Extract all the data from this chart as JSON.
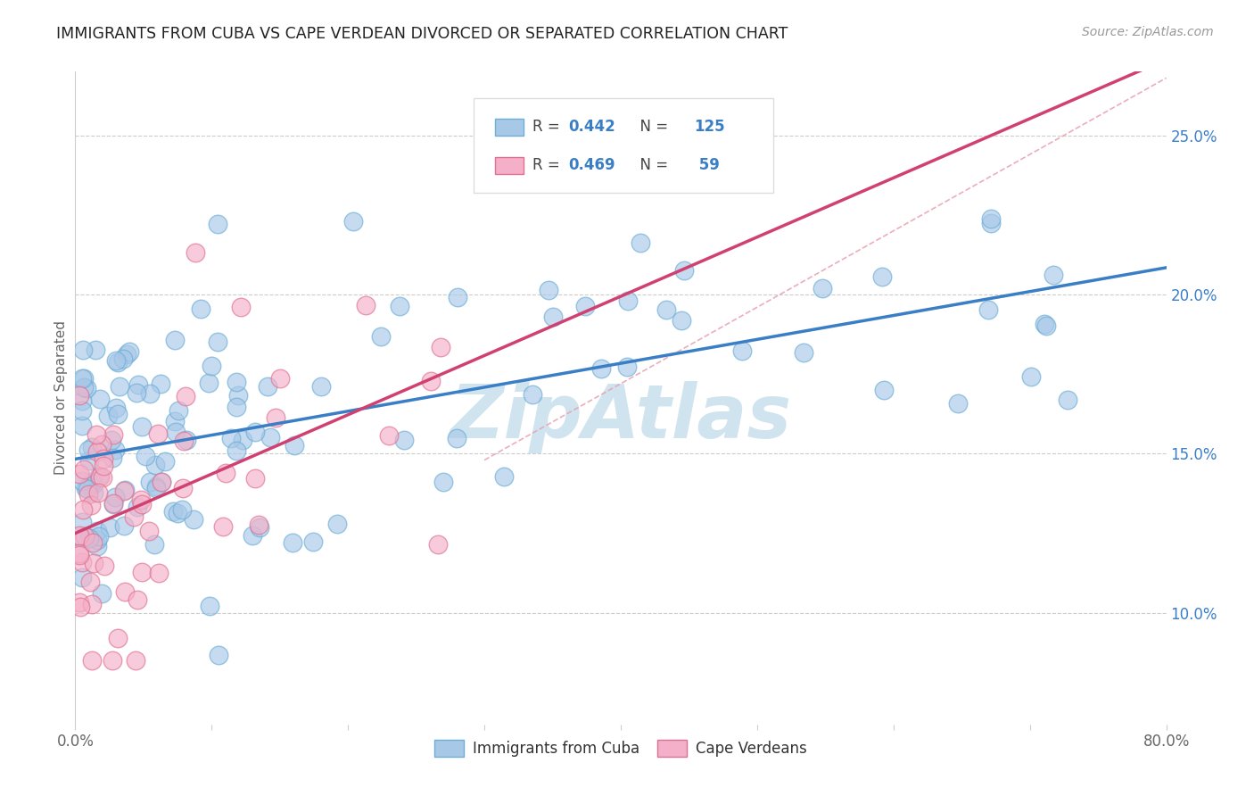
{
  "title": "IMMIGRANTS FROM CUBA VS CAPE VERDEAN DIVORCED OR SEPARATED CORRELATION CHART",
  "source": "Source: ZipAtlas.com",
  "ylabel": "Divorced or Separated",
  "legend_cuba": "Immigrants from Cuba",
  "legend_cape": "Cape Verdeans",
  "legend_r_cuba": "0.442",
  "legend_n_cuba": "125",
  "legend_r_cape": "0.469",
  "legend_n_cape": " 59",
  "xlim": [
    0.0,
    0.8
  ],
  "ylim": [
    0.065,
    0.27
  ],
  "yticks": [
    0.1,
    0.15,
    0.2,
    0.25
  ],
  "ytick_labels": [
    "10.0%",
    "15.0%",
    "20.0%",
    "25.0%"
  ],
  "xticks": [
    0.0,
    0.1,
    0.2,
    0.3,
    0.4,
    0.5,
    0.6,
    0.7,
    0.8
  ],
  "xtick_labels": [
    "0.0%",
    "",
    "",
    "",
    "",
    "",
    "",
    "",
    "80.0%"
  ],
  "color_cuba_fill": "#A8C8E8",
  "color_cuba_edge": "#6BAED6",
  "color_cape_fill": "#F4B0C8",
  "color_cape_edge": "#E07090",
  "color_line_cuba": "#3A7EC6",
  "color_line_cape": "#D04070",
  "color_diag": "#E8A0B0",
  "watermark_color": "#D0E4F0",
  "background": "#ffffff",
  "text_color": "#333333",
  "tick_color": "#666666",
  "grid_color": "#cccccc",
  "R_cuba": 0.442,
  "R_cape": 0.469,
  "N_cuba": 125,
  "N_cape": 59
}
